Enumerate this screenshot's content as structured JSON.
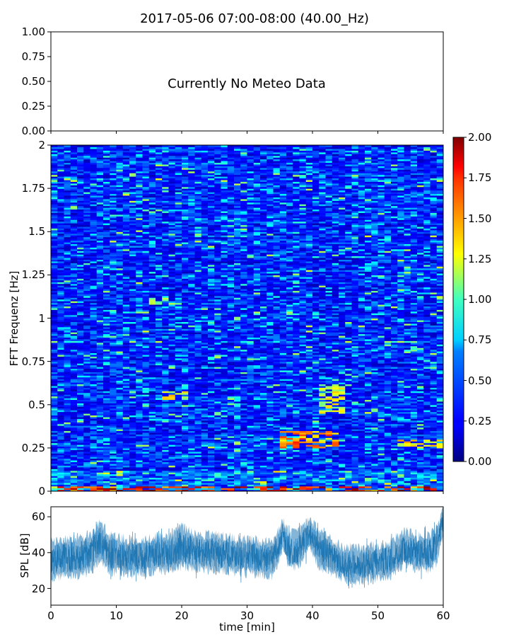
{
  "figure": {
    "title": "2017-05-06 07:00-08:00 (40.00_Hz)"
  },
  "chart_data": [
    {
      "type": "line",
      "panel": "meteo",
      "message": "Currently No Meteo Data",
      "xlim": [
        0,
        60
      ],
      "ylim": [
        0,
        1
      ],
      "yticks": [
        "0.00",
        "0.25",
        "0.50",
        "0.75",
        "1.00"
      ]
    },
    {
      "type": "heatmap",
      "panel": "spectrogram",
      "ylabel": "FFT Frequenz [Hz]",
      "xlim": [
        0,
        60
      ],
      "ylim": [
        0,
        2
      ],
      "yticks": [
        "0",
        "0.25",
        "0.5",
        "0.75",
        "1",
        "1.25",
        "1.5",
        "1.75",
        "2"
      ],
      "colorscale": "jet",
      "colorbar": {
        "range": [
          0,
          2
        ],
        "ticks": [
          "0.00",
          "0.25",
          "0.50",
          "0.75",
          "1.00",
          "1.25",
          "1.50",
          "1.75",
          "2.00"
        ]
      },
      "hotspots": [
        {
          "t0": 0,
          "t1": 60,
          "f0": 0,
          "f1": 0.03,
          "level": 1.65
        },
        {
          "t0": 35,
          "t1": 44,
          "f0": 0.25,
          "f1": 0.35,
          "level": 1.55
        },
        {
          "t0": 17,
          "t1": 21,
          "f0": 0.52,
          "f1": 0.58,
          "level": 1.3
        },
        {
          "t0": 41,
          "t1": 45,
          "f0": 0.45,
          "f1": 0.62,
          "level": 1.25
        },
        {
          "t0": 53,
          "t1": 60,
          "f0": 0.25,
          "f1": 0.3,
          "level": 1.35
        },
        {
          "t0": 15,
          "t1": 19,
          "f0": 1.08,
          "f1": 1.12,
          "level": 1.1
        },
        {
          "t0": 54,
          "t1": 57,
          "f0": 0.8,
          "f1": 0.84,
          "level": 1.0
        }
      ]
    },
    {
      "type": "area",
      "panel": "spl",
      "ylabel": "SPL [dB]",
      "xlabel": "time [min]",
      "xlim": [
        0,
        60
      ],
      "ylim": [
        12,
        65
      ],
      "xticks": [
        "0",
        "10",
        "20",
        "30",
        "40",
        "50",
        "60"
      ],
      "yticks": [
        "20",
        "40",
        "60"
      ],
      "color": "#1f77b4",
      "series": [
        {
          "time": [
            0,
            2,
            4,
            6,
            7.5,
            9,
            12,
            15,
            18,
            20,
            22,
            25,
            28,
            31,
            34,
            35.5,
            36.5,
            38,
            39.5,
            41,
            43,
            45,
            47,
            50,
            52,
            54,
            56,
            58,
            59,
            60
          ],
          "median": [
            37,
            38,
            38,
            40,
            46,
            40,
            38,
            39,
            40,
            43,
            41,
            40,
            39,
            38,
            37,
            50,
            40,
            42,
            50,
            43,
            38,
            34,
            34,
            35,
            36,
            42,
            40,
            40,
            44,
            58
          ],
          "upper": [
            46,
            47,
            48,
            50,
            56,
            50,
            47,
            48,
            49,
            54,
            50,
            50,
            48,
            47,
            46,
            58,
            50,
            52,
            58,
            53,
            47,
            43,
            43,
            44,
            46,
            52,
            49,
            50,
            53,
            65
          ],
          "lower": [
            26,
            27,
            28,
            30,
            37,
            30,
            29,
            30,
            31,
            33,
            32,
            31,
            30,
            29,
            28,
            42,
            32,
            34,
            42,
            33,
            30,
            26,
            25,
            27,
            28,
            34,
            32,
            31,
            35,
            50
          ]
        }
      ]
    }
  ]
}
